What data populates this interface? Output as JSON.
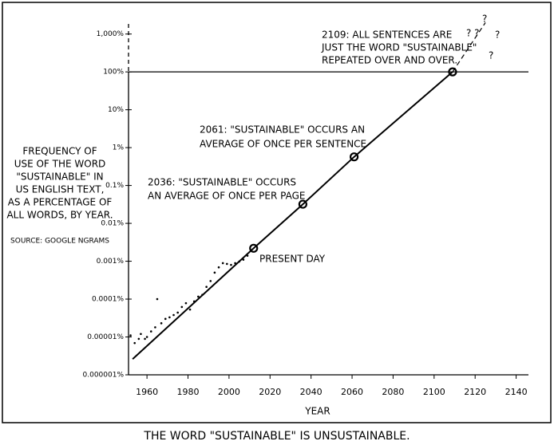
{
  "chart_data": {
    "type": "scatter",
    "title": "THE WORD \"SUSTAINABLE\" IS UNSUSTAINABLE.",
    "y_label_lines": [
      "FREQUENCY OF",
      "USE OF THE WORD",
      "\"SUSTAINABLE\" IN",
      "US ENGLISH TEXT,",
      "AS A PERCENTAGE OF",
      "ALL WORDS, BY YEAR."
    ],
    "source": "SOURCE: GOOGLE NGRAMS",
    "x_label": "YEAR",
    "log_y": true,
    "xlim": [
      1951,
      2146
    ],
    "ylim": [
      1e-06,
      3000
    ],
    "xticks": [
      1960,
      1980,
      2000,
      2020,
      2040,
      2060,
      2080,
      2100,
      2120,
      2140
    ],
    "yticks": [
      {
        "value": 1000,
        "label": "1,000%"
      },
      {
        "value": 100,
        "label": "100%"
      },
      {
        "value": 10,
        "label": "10%"
      },
      {
        "value": 1,
        "label": "1%"
      },
      {
        "value": 0.1,
        "label": "0.1%"
      },
      {
        "value": 0.01,
        "label": "0.01%"
      },
      {
        "value": 0.001,
        "label": "0.001%"
      },
      {
        "value": 0.0001,
        "label": "0.0001%"
      },
      {
        "value": 1e-05,
        "label": "0.00001%"
      },
      {
        "value": 1e-06,
        "label": "0.000001%"
      }
    ],
    "hline": 100,
    "color": "#000000",
    "scatter": {
      "x": [
        1952,
        1954,
        1956,
        1957,
        1959,
        1960,
        1962,
        1964,
        1965,
        1967,
        1969,
        1971,
        1973,
        1975,
        1977,
        1979,
        1981,
        1983,
        1985,
        1987,
        1989,
        1991,
        1993,
        1995,
        1997,
        1999,
        2001,
        2003,
        2005,
        2007,
        2009
      ],
      "values": [
        1.1e-05,
        6.9e-06,
        8.9e-06,
        1.2e-05,
        8.9e-06,
        1e-05,
        1.4e-05,
        1.8e-05,
        0.0001,
        2.3e-05,
        3e-05,
        3.3e-05,
        3.8e-05,
        4.4e-05,
        6.2e-05,
        7.8e-05,
        5.3e-05,
        8.7e-05,
        0.000116,
        0.00013,
        0.00021,
        0.0003,
        0.0005,
        0.00069,
        0.00089,
        0.00085,
        0.0008,
        0.00089,
        0.00098,
        0.0011,
        0.0014
      ]
    },
    "trend": {
      "x": [
        1953,
        2012,
        2036,
        2061,
        2109
      ],
      "values": [
        2.6e-06,
        0.0022,
        0.032,
        0.57,
        100
      ]
    },
    "extrapolation": {
      "x": [
        2109,
        2125
      ],
      "values": [
        100,
        2000
      ]
    },
    "milestones": {
      "x": [
        2012,
        2036,
        2061,
        2109
      ],
      "values": [
        0.0022,
        0.032,
        0.57,
        100
      ]
    },
    "annotations": [
      {
        "lines": [
          "2109: ALL SENTENCES ARE",
          "JUST THE WORD \"SUSTAINABLE\"",
          "REPEATED OVER AND OVER."
        ]
      },
      {
        "lines": [
          "2061: \"SUSTAINABLE\" OCCURS AN",
          "AVERAGE OF ONCE PER SENTENCE"
        ]
      },
      {
        "lines": [
          "2036: \"SUSTAINABLE\" OCCURS",
          "AN AVERAGE OF ONCE PER PAGE"
        ]
      },
      {
        "lines": [
          "PRESENT DAY"
        ]
      },
      {
        "lines": [
          "? ?"
        ]
      },
      {
        "lines": [
          "?"
        ]
      },
      {
        "lines": [
          "?"
        ]
      },
      {
        "lines": [
          "?"
        ]
      }
    ]
  }
}
